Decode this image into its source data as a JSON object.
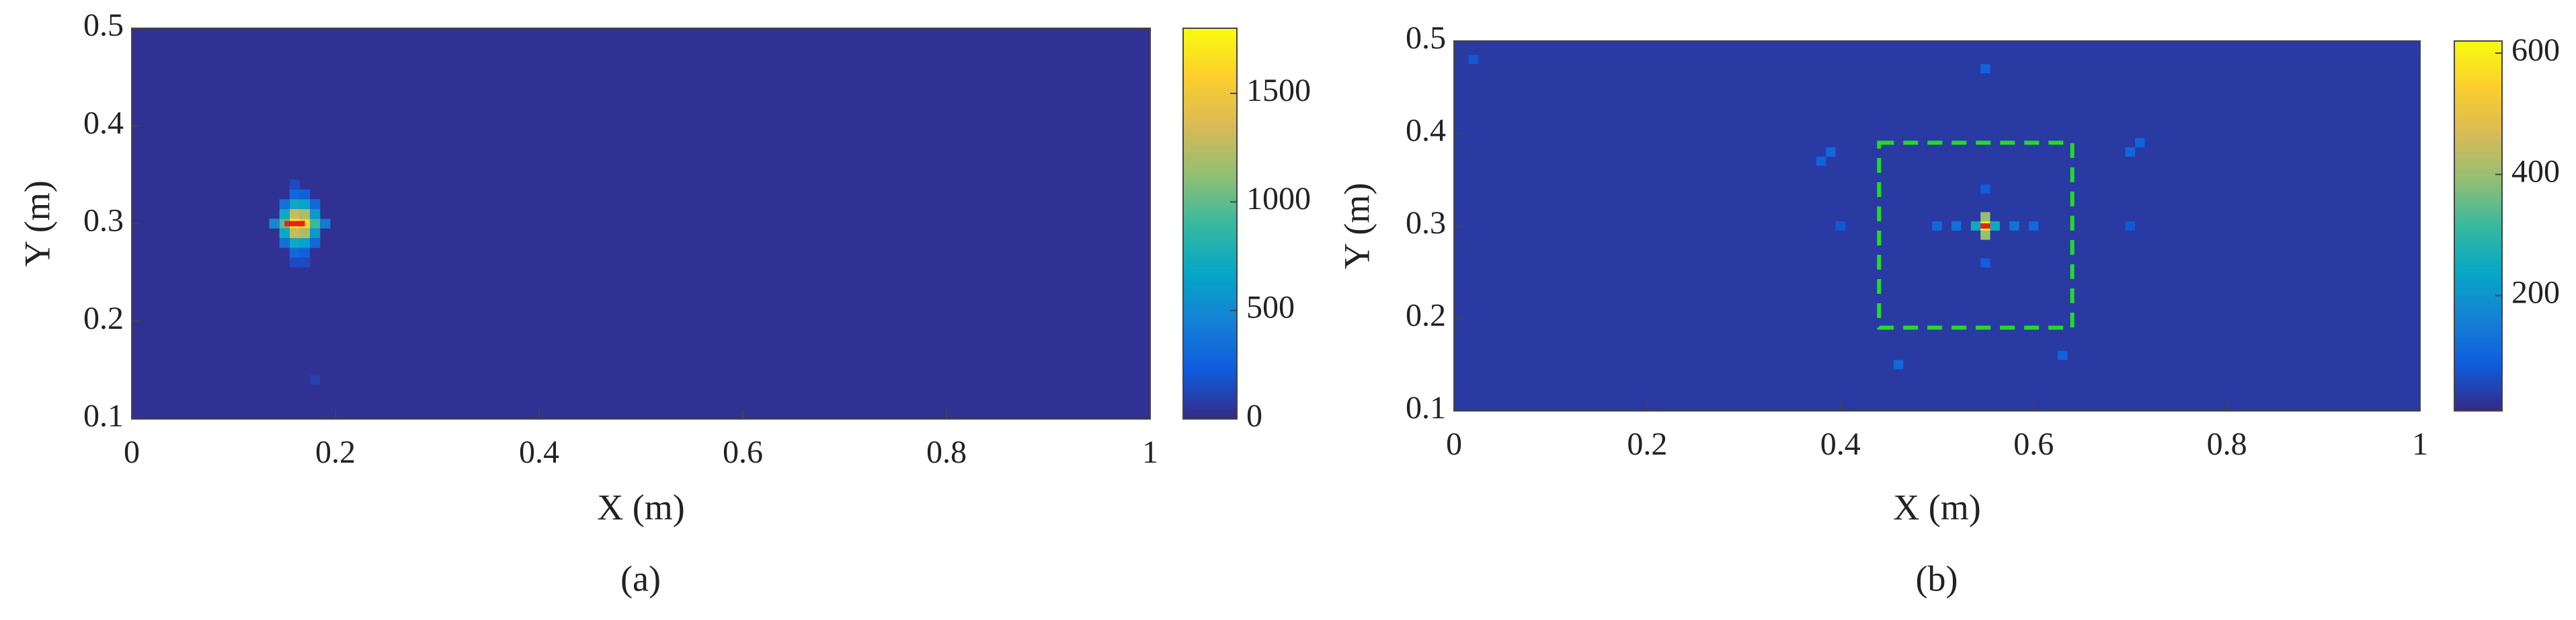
{
  "chart_data": [
    {
      "type": "heatmap",
      "xlabel": "X (m)",
      "ylabel": "Y (m)",
      "subtitle": "(a)",
      "xlim": [
        0,
        1
      ],
      "ylim": [
        0.1,
        0.5
      ],
      "xticks": [
        0,
        0.2,
        0.4,
        0.6,
        0.8,
        1
      ],
      "yticks": [
        0.1,
        0.2,
        0.3,
        0.4,
        0.5
      ],
      "clim": [
        0,
        1800
      ],
      "cticks": [
        0,
        500,
        1000,
        1500
      ],
      "dx": 0.01,
      "dy": 0.01,
      "background": 30,
      "cells": {
        "x": [
          0.16,
          0.17,
          0.15,
          0.18,
          0.16,
          0.17,
          0.16,
          0.17,
          0.15,
          0.18,
          0.15,
          0.18,
          0.14,
          0.19,
          0.16,
          0.17,
          0.16,
          0.17,
          0.15,
          0.18,
          0.15,
          0.18,
          0.16,
          0.17,
          0.16,
          0.17,
          0.16,
          0.17,
          0.16,
          0.18
        ],
        "y": [
          0.3,
          0.3,
          0.3,
          0.3,
          0.31,
          0.31,
          0.29,
          0.29,
          0.31,
          0.31,
          0.29,
          0.29,
          0.3,
          0.3,
          0.32,
          0.32,
          0.28,
          0.28,
          0.32,
          0.32,
          0.28,
          0.28,
          0.33,
          0.33,
          0.27,
          0.27,
          0.26,
          0.26,
          0.34,
          0.14
        ],
        "values": [
          1750,
          1600,
          1000,
          900,
          1300,
          1200,
          1300,
          1200,
          700,
          600,
          700,
          600,
          500,
          400,
          700,
          650,
          700,
          650,
          350,
          300,
          350,
          300,
          300,
          250,
          300,
          250,
          150,
          150,
          150,
          100
        ]
      },
      "marker": {
        "x": [
          0.15,
          0.17
        ],
        "y": [
          0.3,
          0.3
        ],
        "color": "#e8201a"
      },
      "colormap": [
        "#352a87",
        "#0f5cdd",
        "#1481d6",
        "#06a7c6",
        "#38b99e",
        "#92bf73",
        "#d9ba56",
        "#fcce2e",
        "#f9fb0e"
      ]
    },
    {
      "type": "heatmap",
      "xlabel": "X (m)",
      "ylabel": "Y (m)",
      "subtitle": "(b)",
      "xlim": [
        0,
        1
      ],
      "ylim": [
        0.1,
        0.5
      ],
      "xticks": [
        0,
        0.2,
        0.4,
        0.6,
        0.8,
        1
      ],
      "yticks": [
        0.1,
        0.2,
        0.3,
        0.4,
        0.5
      ],
      "clim": [
        10,
        620
      ],
      "cticks": [
        200,
        400,
        600
      ],
      "dx": 0.01,
      "dy": 0.01,
      "background": 35,
      "cells": {
        "x": [
          0.55,
          0.55,
          0.55,
          0.54,
          0.56,
          0.52,
          0.58,
          0.6,
          0.5,
          0.55,
          0.55,
          0.55,
          0.39,
          0.38,
          0.7,
          0.71,
          0.46,
          0.63,
          0.02,
          0.4,
          0.7
        ],
        "y": [
          0.3,
          0.31,
          0.29,
          0.3,
          0.3,
          0.3,
          0.3,
          0.3,
          0.3,
          0.26,
          0.34,
          0.47,
          0.38,
          0.37,
          0.38,
          0.39,
          0.15,
          0.16,
          0.48,
          0.3,
          0.3
        ],
        "values": [
          620,
          400,
          400,
          250,
          250,
          130,
          130,
          110,
          110,
          90,
          90,
          100,
          110,
          100,
          110,
          100,
          110,
          100,
          80,
          80,
          80
        ]
      },
      "marker": {
        "x": [
          0.545,
          0.555
        ],
        "y": [
          0.3,
          0.3
        ],
        "color": "#e8201a"
      },
      "region": {
        "xlim": [
          0.44,
          0.64
        ],
        "ylim": [
          0.19,
          0.39
        ],
        "color": "#22dd22"
      },
      "colormap": [
        "#352a87",
        "#0f5cdd",
        "#1481d6",
        "#06a7c6",
        "#38b99e",
        "#92bf73",
        "#d9ba56",
        "#fcce2e",
        "#f9fb0e"
      ]
    }
  ]
}
